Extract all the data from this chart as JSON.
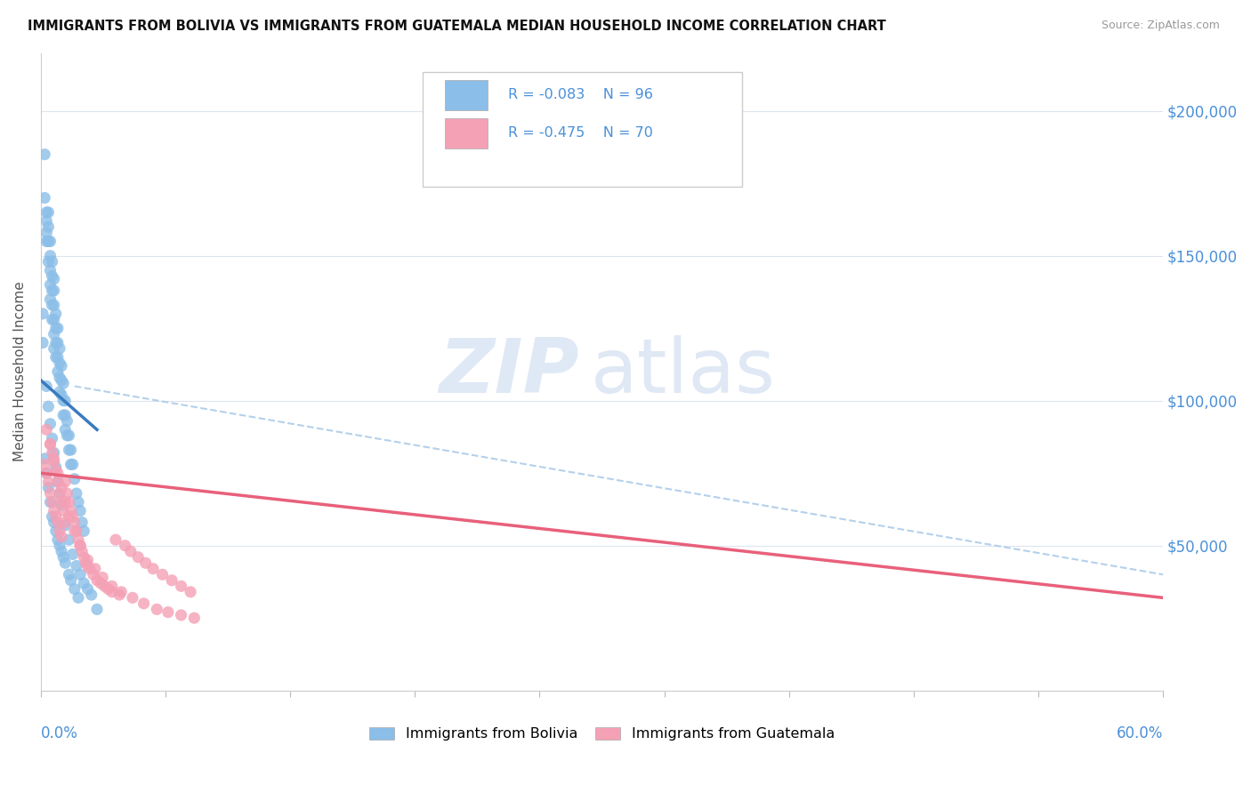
{
  "title": "IMMIGRANTS FROM BOLIVIA VS IMMIGRANTS FROM GUATEMALA MEDIAN HOUSEHOLD INCOME CORRELATION CHART",
  "source": "Source: ZipAtlas.com",
  "ylabel": "Median Household Income",
  "xlim": [
    0.0,
    0.6
  ],
  "ylim": [
    0,
    220000
  ],
  "background_color": "#ffffff",
  "color_bolivia": "#8bbee8",
  "color_guatemala": "#f4a0b5",
  "color_bolivia_line": "#3a7abf",
  "color_guatemala_line": "#e8607a",
  "color_dashed": "#a8c8e8",
  "tick_color": "#4a90d9",
  "grid_color": "#dde5f0",
  "watermark_color": "#d0e0f0",
  "legend_R1": "R = -0.083",
  "legend_N1": "N = 96",
  "legend_R2": "R = -0.475",
  "legend_N2": "N = 70",
  "bolivia_x": [
    0.002,
    0.002,
    0.003,
    0.003,
    0.003,
    0.003,
    0.004,
    0.004,
    0.004,
    0.004,
    0.005,
    0.005,
    0.005,
    0.005,
    0.005,
    0.006,
    0.006,
    0.006,
    0.006,
    0.006,
    0.007,
    0.007,
    0.007,
    0.007,
    0.007,
    0.007,
    0.008,
    0.008,
    0.008,
    0.008,
    0.009,
    0.009,
    0.009,
    0.009,
    0.01,
    0.01,
    0.01,
    0.01,
    0.011,
    0.011,
    0.011,
    0.012,
    0.012,
    0.012,
    0.013,
    0.013,
    0.013,
    0.014,
    0.014,
    0.015,
    0.015,
    0.016,
    0.016,
    0.017,
    0.018,
    0.019,
    0.02,
    0.021,
    0.022,
    0.023,
    0.001,
    0.001,
    0.002,
    0.003,
    0.004,
    0.005,
    0.006,
    0.007,
    0.008,
    0.009,
    0.01,
    0.011,
    0.012,
    0.013,
    0.015,
    0.016,
    0.018,
    0.02,
    0.003,
    0.004,
    0.005,
    0.006,
    0.007,
    0.008,
    0.009,
    0.01,
    0.011,
    0.013,
    0.015,
    0.017,
    0.019,
    0.021,
    0.023,
    0.025,
    0.027,
    0.03
  ],
  "bolivia_y": [
    185000,
    170000,
    165000,
    162000,
    158000,
    155000,
    165000,
    160000,
    155000,
    148000,
    155000,
    150000,
    145000,
    140000,
    135000,
    148000,
    143000,
    138000,
    133000,
    128000,
    142000,
    138000,
    133000,
    128000,
    123000,
    118000,
    130000,
    125000,
    120000,
    115000,
    125000,
    120000,
    115000,
    110000,
    118000,
    113000,
    108000,
    103000,
    112000,
    107000,
    102000,
    106000,
    100000,
    95000,
    100000,
    95000,
    90000,
    93000,
    88000,
    88000,
    83000,
    83000,
    78000,
    78000,
    73000,
    68000,
    65000,
    62000,
    58000,
    55000,
    130000,
    120000,
    80000,
    75000,
    70000,
    65000,
    60000,
    58000,
    55000,
    52000,
    50000,
    48000,
    46000,
    44000,
    40000,
    38000,
    35000,
    32000,
    105000,
    98000,
    92000,
    87000,
    82000,
    77000,
    72000,
    68000,
    64000,
    57000,
    52000,
    47000,
    43000,
    40000,
    37000,
    35000,
    33000,
    28000
  ],
  "guatemala_x": [
    0.002,
    0.003,
    0.004,
    0.005,
    0.005,
    0.006,
    0.006,
    0.007,
    0.007,
    0.008,
    0.008,
    0.009,
    0.009,
    0.01,
    0.01,
    0.011,
    0.011,
    0.012,
    0.013,
    0.013,
    0.014,
    0.015,
    0.016,
    0.017,
    0.018,
    0.019,
    0.02,
    0.021,
    0.022,
    0.023,
    0.024,
    0.025,
    0.026,
    0.028,
    0.03,
    0.032,
    0.034,
    0.036,
    0.038,
    0.04,
    0.042,
    0.045,
    0.048,
    0.052,
    0.056,
    0.06,
    0.065,
    0.07,
    0.075,
    0.08,
    0.003,
    0.005,
    0.007,
    0.009,
    0.011,
    0.013,
    0.015,
    0.018,
    0.021,
    0.025,
    0.029,
    0.033,
    0.038,
    0.043,
    0.049,
    0.055,
    0.062,
    0.068,
    0.075,
    0.082
  ],
  "guatemala_y": [
    78000,
    75000,
    72000,
    85000,
    68000,
    82000,
    65000,
    79000,
    62000,
    76000,
    60000,
    72000,
    58000,
    68000,
    55000,
    65000,
    53000,
    62000,
    72000,
    58000,
    68000,
    65000,
    62000,
    60000,
    58000,
    55000,
    52000,
    50000,
    48000,
    46000,
    44000,
    43000,
    42000,
    40000,
    38000,
    37000,
    36000,
    35000,
    34000,
    52000,
    33000,
    50000,
    48000,
    46000,
    44000,
    42000,
    40000,
    38000,
    36000,
    34000,
    90000,
    85000,
    80000,
    75000,
    70000,
    65000,
    60000,
    55000,
    50000,
    45000,
    42000,
    39000,
    36000,
    34000,
    32000,
    30000,
    28000,
    27000,
    26000,
    25000
  ]
}
